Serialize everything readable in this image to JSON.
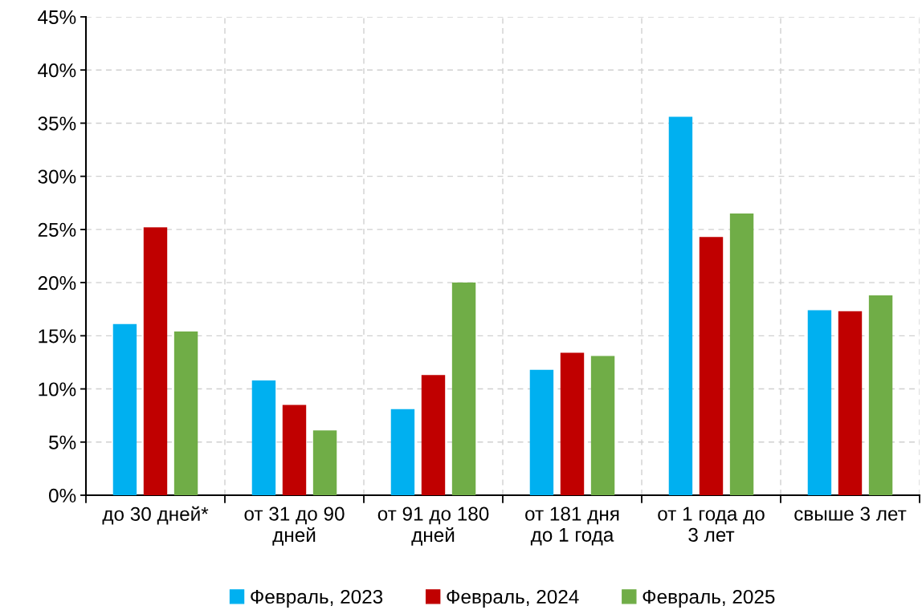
{
  "chart_data": {
    "type": "bar",
    "categories": [
      "до 30 дней*",
      "от 31 до 90\nдней",
      "от 91 до 180\nдней",
      "от 181 дня\nдо 1 года",
      "от 1 года до\n3 лет",
      "свыше 3 лет"
    ],
    "series": [
      {
        "name": "Февраль, 2023",
        "color": "#00b0f0",
        "values": [
          16.1,
          10.8,
          8.1,
          11.8,
          35.6,
          17.4
        ]
      },
      {
        "name": "Февраль, 2024",
        "color": "#c00000",
        "values": [
          25.2,
          8.5,
          11.3,
          13.4,
          24.3,
          17.3
        ]
      },
      {
        "name": "Февраль, 2025",
        "color": "#70ad47",
        "values": [
          15.4,
          6.1,
          20.0,
          13.1,
          26.5,
          18.8
        ]
      }
    ],
    "ylim": [
      0,
      45
    ],
    "yticks": [
      {
        "value": 0,
        "label": "0%"
      },
      {
        "value": 5,
        "label": "5%"
      },
      {
        "value": 10,
        "label": "10%"
      },
      {
        "value": 15,
        "label": "15%"
      },
      {
        "value": 20,
        "label": "20%"
      },
      {
        "value": 25,
        "label": "25%"
      },
      {
        "value": 30,
        "label": "30%"
      },
      {
        "value": 35,
        "label": "35%"
      },
      {
        "value": 40,
        "label": "40%"
      },
      {
        "value": 45,
        "label": "45%"
      }
    ],
    "grid": true,
    "legend": "bottom"
  }
}
